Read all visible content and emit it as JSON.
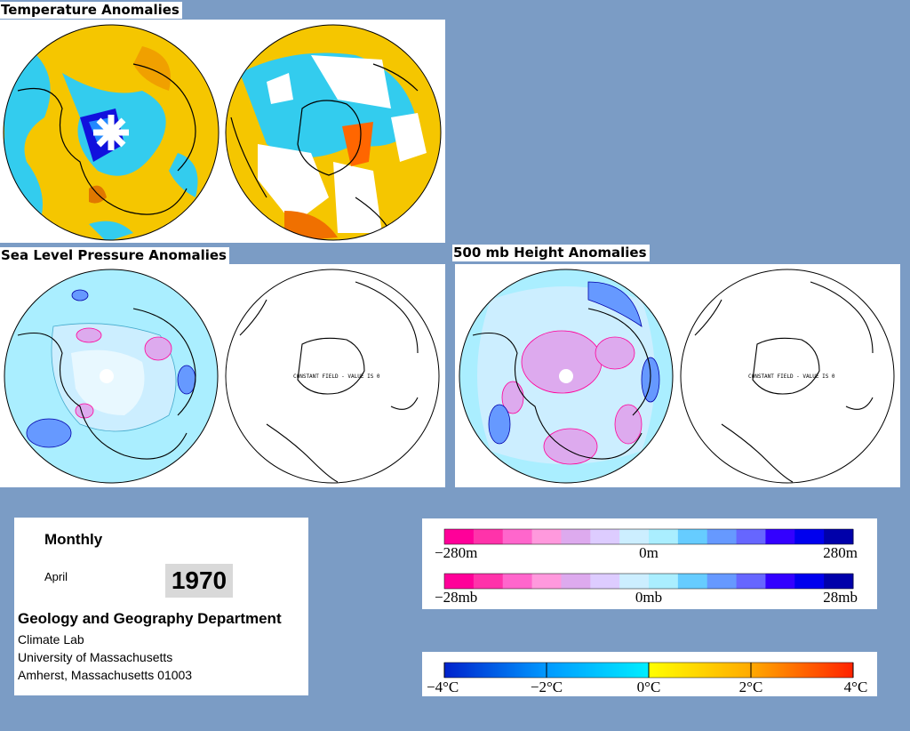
{
  "titles": {
    "temperature": "Temperature Anomalies",
    "slp": "Sea Level Pressure Anomalies",
    "height500": "500 mb Height Anomalies"
  },
  "map_note": "CONSTANT FIELD - VALUE IS 0",
  "info": {
    "frequency": "Monthly",
    "month": "April",
    "year": "1970",
    "department": "Geology and Geography Department",
    "lab": "Climate Lab",
    "university": "University of Massachusetts",
    "address": "Amherst, Massachusetts 01003"
  },
  "legends": {
    "height": {
      "ticks": [
        "−280m",
        "0m",
        "280m"
      ]
    },
    "pressure": {
      "ticks": [
        "−28mb",
        "0mb",
        "28mb"
      ]
    },
    "temperature": {
      "ticks": [
        "−4°C",
        "−2°C",
        "0°C",
        "2°C",
        "4°C"
      ]
    }
  },
  "colors": {
    "background": "#7b9cc5",
    "anomaly_scale": [
      "#ff0099",
      "#ff33aa",
      "#ff66cc",
      "#ff99dd",
      "#ddaaee",
      "#ddccff",
      "#cceeff",
      "#aaeeff",
      "#66ccff",
      "#6699ff",
      "#6666ff",
      "#3300ff",
      "#0000ee",
      "#0000aa"
    ],
    "temperature_scale": [
      "#0033cc",
      "#00aaff",
      "#00ddff",
      "#ffff00",
      "#ffaa00",
      "#ff0000"
    ]
  }
}
